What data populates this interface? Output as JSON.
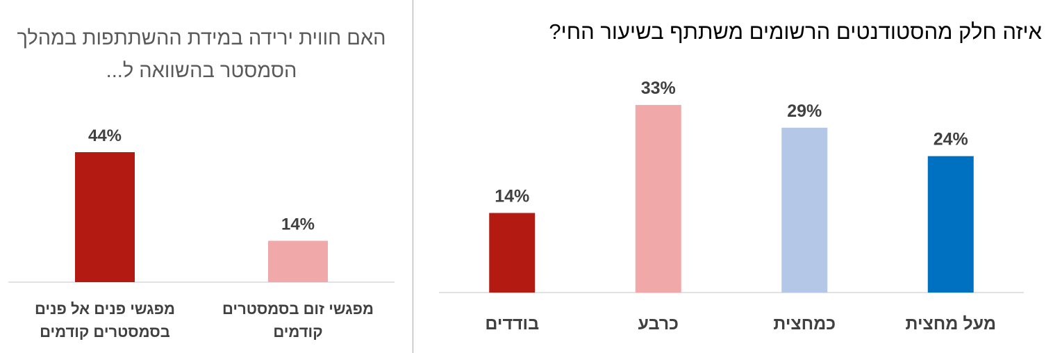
{
  "chart_data": [
    {
      "type": "bar",
      "title": "האם חווית ירידה במידת ההשתתפות במהלך הסמסטר בהשוואה ל...",
      "categories": [
        "מפגשי פנים אל פנים בסמסטרים קודמים",
        "מפגשי זום בסמסטרים קודמים"
      ],
      "category_lines": [
        [
          "מפגשי פנים אל פנים",
          "בסמסטרים קודמים"
        ],
        [
          "מפגשי זום בסמסטרים",
          "קודמים"
        ]
      ],
      "values": [
        44,
        14
      ],
      "value_labels": [
        "44%",
        "14%"
      ],
      "colors": [
        "#b31b12",
        "#f0a9a8"
      ],
      "ylim": [
        0,
        50
      ],
      "xlabel": "",
      "ylabel": "",
      "grid": false,
      "legend": "none"
    },
    {
      "type": "bar",
      "title": "איזה חלק מהסטודנטים הרשומים משתתף בשיעור החי?",
      "categories": [
        "בודדים",
        "כרבע",
        "כמחצית",
        "מעל מחצית"
      ],
      "values": [
        14,
        33,
        29,
        24
      ],
      "value_labels": [
        "14%",
        "33%",
        "29%",
        "24%"
      ],
      "colors": [
        "#b31b12",
        "#f0a9a8",
        "#b4c7e7",
        "#0070c0"
      ],
      "ylim": [
        0,
        40
      ],
      "xlabel": "",
      "ylabel": "",
      "grid": false,
      "legend": "none"
    }
  ]
}
